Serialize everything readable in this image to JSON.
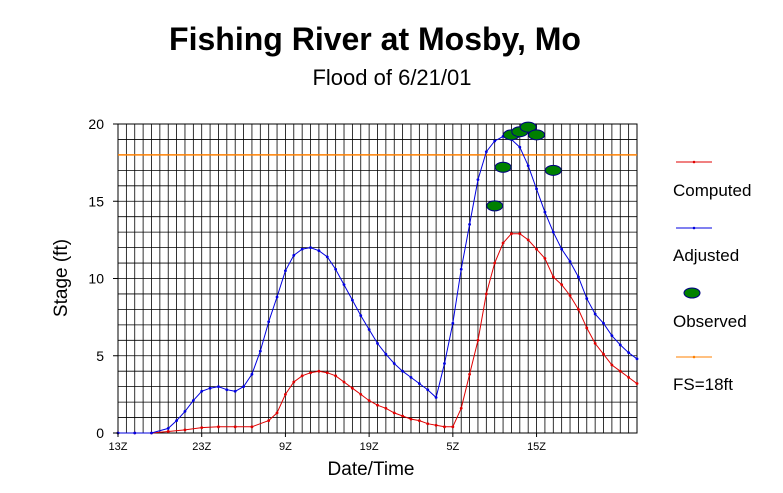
{
  "chart_data": {
    "type": "line",
    "title": "Fishing River at Mosby, Mo",
    "subtitle": "Flood of 6/21/01",
    "xlabel": "Date/Time",
    "ylabel": "Stage (ft)",
    "ylim": [
      0,
      20
    ],
    "yticks": [
      0,
      5,
      10,
      15,
      20
    ],
    "xlim": [
      0,
      62
    ],
    "xticks": [
      {
        "x": 0,
        "label": "13Z"
      },
      {
        "x": 10,
        "label": "23Z"
      },
      {
        "x": 20,
        "label": "9Z"
      },
      {
        "x": 30,
        "label": "19Z"
      },
      {
        "x": 40,
        "label": "5Z"
      },
      {
        "x": 50,
        "label": "15Z"
      }
    ],
    "grid": true,
    "legend_position": "right",
    "colors": {
      "computed": "#e00000",
      "adjusted": "#0000e0",
      "observed_fill": "#008000",
      "observed_stroke": "#000080",
      "flood_stage": "#ff8000",
      "grid": "#000000"
    },
    "series": [
      {
        "name": "Computed",
        "x": [
          0,
          2,
          4,
          6,
          8,
          10,
          12,
          14,
          16,
          18,
          19,
          20,
          21,
          22,
          23,
          24,
          25,
          26,
          27,
          28,
          29,
          30,
          31,
          32,
          33,
          34,
          35,
          36,
          37,
          38,
          39,
          40,
          41,
          42,
          43,
          44,
          45,
          46,
          47,
          48,
          49,
          50,
          51,
          52,
          53,
          54,
          55,
          56,
          57,
          58,
          59,
          60,
          61,
          62
        ],
        "y": [
          0,
          0,
          0,
          0.1,
          0.2,
          0.35,
          0.4,
          0.4,
          0.4,
          0.8,
          1.3,
          2.5,
          3.3,
          3.7,
          3.9,
          4.0,
          3.9,
          3.7,
          3.3,
          2.9,
          2.5,
          2.1,
          1.8,
          1.6,
          1.3,
          1.1,
          0.9,
          0.8,
          0.6,
          0.5,
          0.4,
          0.4,
          1.6,
          3.8,
          6.0,
          9.0,
          11.0,
          12.3,
          12.9,
          12.9,
          12.5,
          11.9,
          11.3,
          10.1,
          9.6,
          8.9,
          8.0,
          6.8,
          5.8,
          5.1,
          4.4,
          4.0,
          3.6,
          3.2
        ]
      },
      {
        "name": "Adjusted",
        "x": [
          0,
          2,
          4,
          6,
          7,
          8,
          9,
          10,
          11,
          12,
          13,
          14,
          15,
          16,
          17,
          18,
          19,
          20,
          21,
          22,
          23,
          24,
          25,
          26,
          27,
          28,
          29,
          30,
          31,
          32,
          33,
          34,
          35,
          36,
          37,
          38,
          39,
          40,
          41,
          42,
          43,
          44,
          45,
          46,
          47,
          48,
          49,
          50,
          51,
          52,
          53,
          54,
          55,
          56,
          57,
          58,
          59,
          60,
          61,
          62
        ],
        "y": [
          0,
          0,
          0,
          0.3,
          0.8,
          1.4,
          2.1,
          2.7,
          2.9,
          3.0,
          2.8,
          2.7,
          3.0,
          3.8,
          5.3,
          7.2,
          8.8,
          10.5,
          11.5,
          11.9,
          12.0,
          11.8,
          11.4,
          10.6,
          9.6,
          8.6,
          7.6,
          6.7,
          5.8,
          5.1,
          4.5,
          4.0,
          3.6,
          3.2,
          2.8,
          2.3,
          4.5,
          7.1,
          10.6,
          13.5,
          16.4,
          18.2,
          18.9,
          19.2,
          19.0,
          18.5,
          17.3,
          15.8,
          14.3,
          13.0,
          11.9,
          11.1,
          10.1,
          8.7,
          7.7,
          7.1,
          6.3,
          5.7,
          5.2,
          4.8
        ]
      },
      {
        "name": "Observed",
        "x": [
          45,
          46,
          47,
          48,
          49,
          50,
          52
        ],
        "y": [
          14.7,
          17.2,
          19.3,
          19.5,
          19.8,
          19.3,
          17.0
        ]
      },
      {
        "name": "FS=18ft",
        "x": [
          0,
          62
        ],
        "y": [
          18,
          18
        ]
      }
    ]
  }
}
